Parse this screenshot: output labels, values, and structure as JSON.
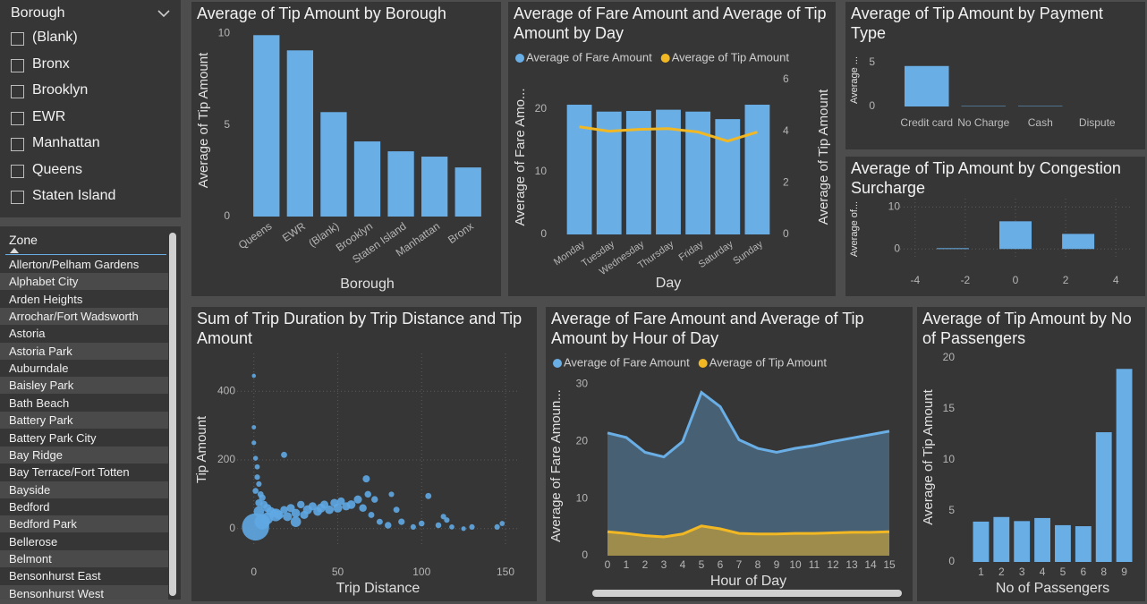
{
  "borough_slicer": {
    "header": "Borough",
    "items": [
      "(Blank)",
      "Bronx",
      "Brooklyn",
      "EWR",
      "Manhattan",
      "Queens",
      "Staten Island"
    ]
  },
  "zone_slicer": {
    "header": "Zone",
    "items": [
      "Allerton/Pelham Gardens",
      "Alphabet City",
      "Arden Heights",
      "Arrochar/Fort Wadsworth",
      "Astoria",
      "Astoria Park",
      "Auburndale",
      "Baisley Park",
      "Bath Beach",
      "Battery Park",
      "Battery Park City",
      "Bay Ridge",
      "Bay Terrace/Fort Totten",
      "Bayside",
      "Bedford",
      "Bedford Park",
      "Bellerose",
      "Belmont",
      "Bensonhurst East",
      "Bensonhurst West"
    ]
  },
  "chart_data": [
    {
      "type": "bar",
      "title": "Average of Tip Amount by Borough",
      "x_label": "Borough",
      "y_label": "Average of Tip Amount",
      "categories": [
        "Queens",
        "EWR",
        "(Blank)",
        "Brooklyn",
        "Staten Island",
        "Manhattan",
        "Bronx"
      ],
      "values": [
        9.9,
        9.07,
        5.7,
        4.1,
        3.56,
        3.27,
        2.68
      ],
      "color": "#6aaee6",
      "ylim": [
        0,
        10.5
      ],
      "yticks": [
        0,
        5,
        10
      ]
    },
    {
      "type": "combo",
      "title": "Average of Fare Amount and Average of Tip Amount by Day",
      "x_label": "Day",
      "y_label": "Average of Fare Amo...",
      "y2_label": "Average of Tip Amount",
      "categories": [
        "Monday",
        "Tuesday",
        "Wednesday",
        "Thursday",
        "Friday",
        "Saturday",
        "Sunday"
      ],
      "series": [
        {
          "name": "Average of Fare Amount",
          "color": "#6aaee6",
          "type": "bar",
          "values": [
            20.7,
            19.6,
            19.7,
            19.9,
            19.6,
            18.4,
            20.7
          ]
        },
        {
          "name": "Average of Tip Amount",
          "color": "#f2b823",
          "type": "line",
          "axis": "y2",
          "values": [
            4.17,
            4.0,
            4.07,
            4.1,
            3.97,
            3.62,
            3.97
          ]
        }
      ],
      "ylim": [
        0,
        24.7
      ],
      "yticks": [
        0,
        10,
        20
      ],
      "y2lim": [
        0,
        6
      ],
      "y2ticks": [
        0,
        2,
        4,
        6
      ]
    },
    {
      "type": "bar",
      "title": "Average of Tip Amount by Payment Type",
      "y_label": "Average ...",
      "categories": [
        "Credit card",
        "No Charge",
        "Cash",
        "Dispute"
      ],
      "values": [
        4.6,
        0.05,
        0.05,
        0
      ],
      "color": "#6aaee6",
      "ylim": [
        0,
        6
      ],
      "yticks": [
        0,
        5
      ]
    },
    {
      "type": "numbar",
      "title": "Average of Tip Amount by Congestion Surcharge",
      "y_label": "Average of...",
      "x": [
        -2.5,
        0,
        2.5
      ],
      "values": [
        0.2,
        6.6,
        3.6
      ],
      "color": "#6aaee6",
      "xlim": [
        -4.6,
        4.6
      ],
      "xticks": [
        -4,
        -2,
        0,
        2,
        4
      ],
      "ylim": [
        -2.5,
        12
      ],
      "yticks": [
        0,
        10
      ],
      "grid": true
    },
    {
      "type": "scatter",
      "title": "Sum of Trip Duration by Trip Distance and Tip Amount",
      "x_label": "Trip Distance",
      "y_label": "Tip Amount",
      "color": "#5fa8e3",
      "x": [
        1,
        0,
        0,
        0,
        1,
        2,
        2,
        3,
        1,
        4,
        5,
        3,
        6,
        8,
        10,
        12,
        15,
        18,
        20,
        22,
        25,
        28,
        30,
        32,
        35,
        38,
        40,
        42,
        45,
        48,
        50,
        52,
        55,
        58,
        62,
        65,
        67,
        68,
        70,
        72,
        75,
        80,
        82,
        85,
        88,
        95,
        100,
        104,
        110,
        113,
        115,
        118,
        125,
        130,
        145,
        148,
        13,
        5,
        18,
        3,
        8,
        25
      ],
      "y": [
        5,
        445,
        295,
        250,
        205,
        180,
        150,
        130,
        110,
        100,
        90,
        75,
        70,
        60,
        50,
        45,
        40,
        55,
        35,
        60,
        45,
        70,
        40,
        55,
        65,
        50,
        60,
        70,
        55,
        75,
        60,
        80,
        65,
        70,
        85,
        60,
        145,
        100,
        40,
        85,
        20,
        10,
        100,
        55,
        20,
        5,
        15,
        95,
        10,
        35,
        25,
        5,
        0,
        5,
        5,
        15,
        40,
        20,
        215,
        50,
        30,
        20
      ],
      "size": [
        3000,
        10,
        15,
        20,
        25,
        30,
        40,
        40,
        50,
        60,
        80,
        100,
        120,
        150,
        200,
        150,
        180,
        120,
        200,
        150,
        180,
        120,
        150,
        200,
        150,
        180,
        200,
        150,
        180,
        150,
        200,
        120,
        150,
        180,
        150,
        120,
        100,
        80,
        60,
        80,
        60,
        80,
        40,
        60,
        70,
        40,
        50,
        60,
        50,
        40,
        40,
        30,
        20,
        40,
        40,
        30,
        500,
        800,
        60,
        300,
        400,
        300
      ],
      "xlim": [
        -10,
        158
      ],
      "xticks": [
        0,
        50,
        100,
        150
      ],
      "ylim": [
        -50,
        510
      ],
      "yticks": [
        0,
        200,
        400
      ],
      "grid": true
    },
    {
      "type": "area",
      "title": "Average of Fare Amount and Average of Tip Amount by Hour of Day",
      "x_label": "Hour of Day",
      "y_label": "Average of Fare Amoun...",
      "x": [
        0,
        1,
        2,
        3,
        4,
        5,
        6,
        7,
        8,
        9,
        10,
        11,
        12,
        13,
        14,
        15
      ],
      "series": [
        {
          "name": "Average of Fare Amount",
          "color": "#6aaee6",
          "values": [
            21.5,
            20.7,
            18.1,
            17.3,
            20.0,
            28.6,
            26.1,
            20.3,
            18.8,
            18.1,
            18.8,
            19.3,
            20.0,
            20.6,
            21.2,
            21.8
          ]
        },
        {
          "name": "Average of Tip Amount",
          "color": "#f2b823",
          "values": [
            4.2,
            3.9,
            3.5,
            3.3,
            3.8,
            5.2,
            4.7,
            3.9,
            3.8,
            3.8,
            3.9,
            3.9,
            4.0,
            4.1,
            4.1,
            4.2
          ]
        }
      ],
      "xlim": [
        0,
        15
      ],
      "xticks": [
        0,
        1,
        2,
        3,
        4,
        5,
        6,
        7,
        8,
        9,
        10,
        11,
        12,
        13,
        14,
        15
      ],
      "ylim": [
        0,
        31.5
      ],
      "yticks": [
        0,
        10,
        20,
        30
      ]
    },
    {
      "type": "bar",
      "title": "Average of Tip Amount by No of Passengers",
      "x_label": "No of Passengers",
      "y_label": "Average of Tip Amount",
      "categories": [
        "1",
        "2",
        "3",
        "4",
        "5",
        "6",
        "8",
        "9"
      ],
      "values": [
        3.95,
        4.4,
        4.0,
        4.3,
        3.6,
        3.5,
        12.7,
        18.9
      ],
      "color": "#6aaee6",
      "ylim": [
        0,
        20.5
      ],
      "yticks": [
        0,
        5,
        10,
        15,
        20
      ]
    }
  ]
}
